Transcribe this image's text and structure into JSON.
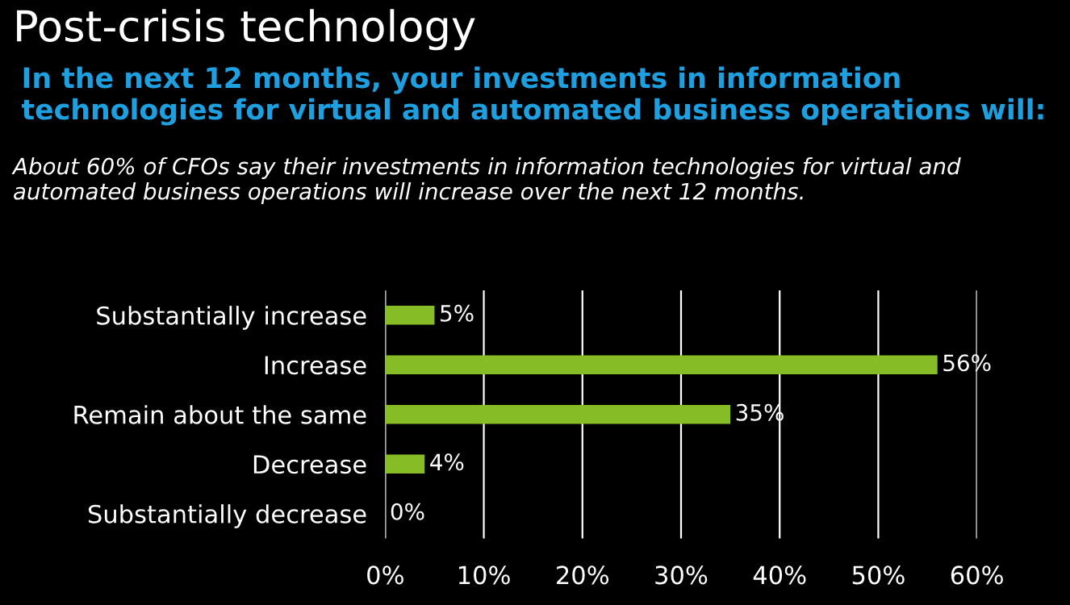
{
  "chart_data": {
    "type": "bar",
    "orientation": "horizontal",
    "title": "Post-crisis technology",
    "subtitle": "In the next 12 months, your investments in information technologies for virtual and automated business operations will:",
    "annotations": [
      "About 60% of CFOs say their investments in information technologies for virtual and automated business operations will increase over the next 12 months."
    ],
    "categories": [
      "Substantially increase",
      "Increase",
      "Remain about the same",
      "Decrease",
      "Substantially decrease"
    ],
    "values": [
      5,
      56,
      35,
      4,
      0
    ],
    "value_labels": [
      "5%",
      "56%",
      "35%",
      "4%",
      "0%"
    ],
    "color": "#86bc25",
    "xlim": [
      0,
      60
    ],
    "xticks": [
      {
        "value": 0,
        "label": "0%"
      },
      {
        "value": 10,
        "label": "10%"
      },
      {
        "value": 20,
        "label": "20%"
      },
      {
        "value": 30,
        "label": "30%"
      },
      {
        "value": 40,
        "label": "40%"
      },
      {
        "value": 50,
        "label": "50%"
      },
      {
        "value": 60,
        "label": "60%"
      }
    ],
    "grid": "x"
  }
}
